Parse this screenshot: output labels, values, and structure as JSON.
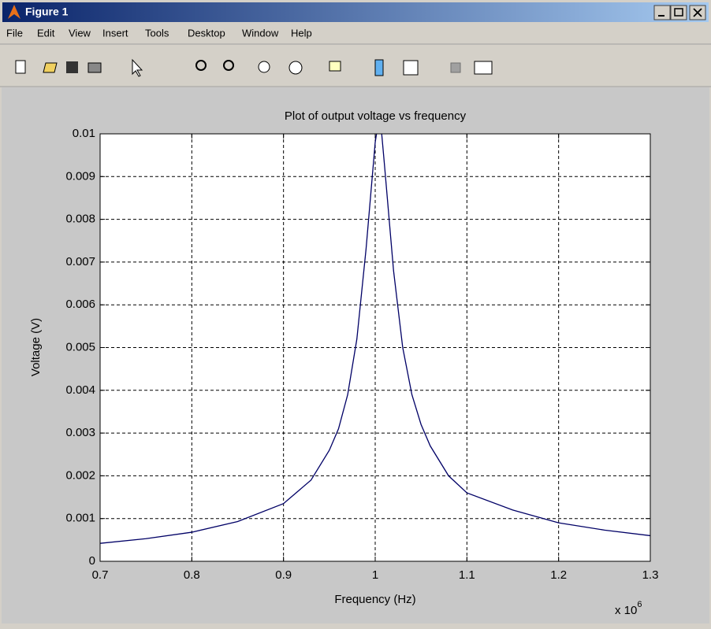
{
  "window": {
    "title": "Figure 1",
    "menu": [
      "File",
      "Edit",
      "View",
      "Insert",
      "Tools",
      "Desktop",
      "Window",
      "Help"
    ]
  },
  "chart_data": {
    "type": "line",
    "title": "Plot of output voltage vs frequency",
    "x_label": "Frequency (Hz)",
    "y_label": "Voltage (V)",
    "x_multiplier": {
      "base": "x 10",
      "exponent": "6"
    },
    "x": [
      0.7,
      0.75,
      0.8,
      0.85,
      0.9,
      0.93,
      0.95,
      0.96,
      0.97,
      0.98,
      0.99,
      1.0,
      1.005,
      1.01,
      1.02,
      1.03,
      1.04,
      1.05,
      1.06,
      1.08,
      1.1,
      1.15,
      1.2,
      1.25,
      1.3
    ],
    "series": [
      {
        "color": "#000066",
        "values": [
          0.00042,
          0.00053,
          0.00068,
          0.00093,
          0.00135,
          0.0019,
          0.0026,
          0.0031,
          0.0039,
          0.0052,
          0.0073,
          0.0098,
          0.0105,
          0.0093,
          0.0068,
          0.005,
          0.0039,
          0.0032,
          0.0027,
          0.002,
          0.0016,
          0.0012,
          0.0009,
          0.00073,
          0.0006
        ]
      }
    ],
    "xlim": [
      0.7,
      1.3
    ],
    "xticks": [
      0.7,
      0.8,
      0.9,
      1,
      1.1,
      1.2,
      1.3
    ],
    "ylim": [
      0,
      0.01
    ],
    "yticks": [
      0,
      0.001,
      0.002,
      0.003,
      0.004,
      0.005,
      0.006,
      0.007,
      0.008,
      0.009,
      0.01
    ],
    "grid": true
  }
}
